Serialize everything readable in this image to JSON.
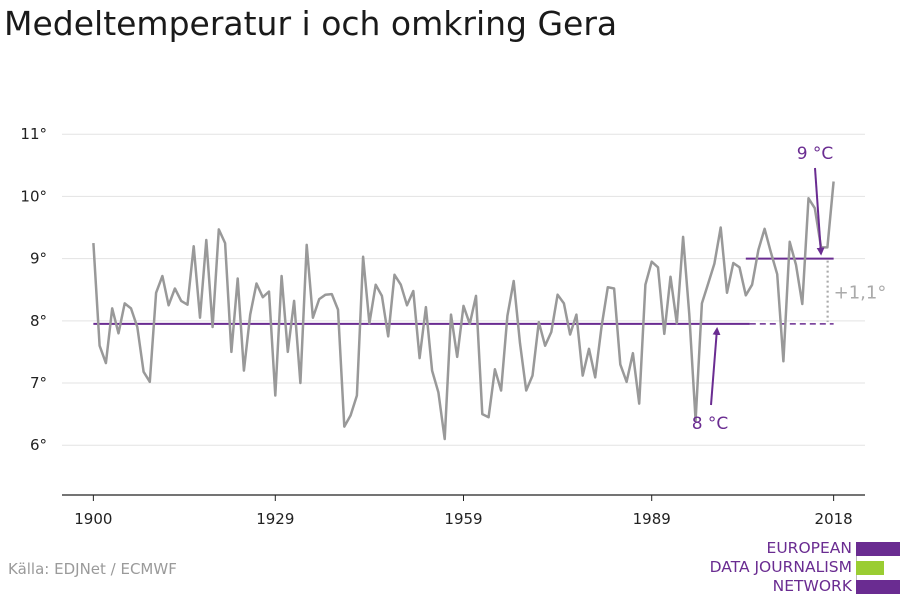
{
  "title": "Medeltemperatur i och omkring Gera",
  "source": "Källa: EDJNet / ECMWF",
  "logo": {
    "lines": [
      "EUROPEAN",
      "DATA JOURNALISM",
      "NETWORK"
    ],
    "colors": {
      "purple": "#6a2c91",
      "green": "#9acd32"
    }
  },
  "chart_data": {
    "type": "line",
    "x_ticks": [
      1900,
      1929,
      1959,
      1989,
      2018
    ],
    "y_ticks": [
      6,
      7,
      8,
      9,
      10,
      11
    ],
    "y_tick_labels": [
      "6°",
      "7°",
      "8°",
      "9°",
      "10°",
      "11°"
    ],
    "xlim": [
      1895,
      2023
    ],
    "ylim": [
      5.2,
      11.55
    ],
    "series": [
      {
        "color": "#999999",
        "x": [
          1900,
          1901,
          1902,
          1903,
          1904,
          1905,
          1906,
          1907,
          1908,
          1909,
          1910,
          1911,
          1912,
          1913,
          1914,
          1915,
          1916,
          1917,
          1918,
          1919,
          1920,
          1921,
          1922,
          1923,
          1924,
          1925,
          1926,
          1927,
          1928,
          1929,
          1930,
          1931,
          1932,
          1933,
          1934,
          1935,
          1936,
          1937,
          1938,
          1939,
          1940,
          1941,
          1942,
          1943,
          1944,
          1945,
          1946,
          1947,
          1948,
          1949,
          1950,
          1951,
          1952,
          1953,
          1954,
          1955,
          1956,
          1957,
          1958,
          1959,
          1960,
          1961,
          1962,
          1963,
          1964,
          1965,
          1966,
          1967,
          1968,
          1969,
          1970,
          1971,
          1972,
          1973,
          1974,
          1975,
          1976,
          1977,
          1978,
          1979,
          1980,
          1981,
          1982,
          1983,
          1984,
          1985,
          1986,
          1987,
          1988,
          1989,
          1990,
          1991,
          1992,
          1993,
          1994,
          1995,
          1996,
          1997,
          1998,
          1999,
          2000,
          2001,
          2002,
          2003,
          2004,
          2005,
          2006,
          2007,
          2008,
          2009,
          2010,
          2011,
          2012,
          2013,
          2014,
          2015,
          2016,
          2017,
          2018
        ],
        "values": [
          9.25,
          7.6,
          7.32,
          8.2,
          7.8,
          8.28,
          8.2,
          7.9,
          7.18,
          7.02,
          8.45,
          8.72,
          8.25,
          8.52,
          8.32,
          8.26,
          9.2,
          8.05,
          9.3,
          7.9,
          9.47,
          9.25,
          7.5,
          8.68,
          7.2,
          8.1,
          8.6,
          8.38,
          8.47,
          6.8,
          8.72,
          7.5,
          8.32,
          7.0,
          9.22,
          8.05,
          8.35,
          8.42,
          8.43,
          8.18,
          6.3,
          6.48,
          6.8,
          9.03,
          7.96,
          8.58,
          8.4,
          7.75,
          8.74,
          8.58,
          8.25,
          8.48,
          7.4,
          8.22,
          7.2,
          6.85,
          6.1,
          8.1,
          7.42,
          8.24,
          7.95,
          8.4,
          6.5,
          6.45,
          7.22,
          6.88,
          8.08,
          8.64,
          7.64,
          6.88,
          7.12,
          7.98,
          7.6,
          7.82,
          8.42,
          8.28,
          7.78,
          8.1,
          7.12,
          7.55,
          7.09,
          7.9,
          8.54,
          8.52,
          7.3,
          7.02,
          7.48,
          6.67,
          8.58,
          8.95,
          8.86,
          7.79,
          8.71,
          7.96,
          9.35,
          8.1,
          6.4,
          8.28,
          8.6,
          8.92,
          9.5,
          8.45,
          8.93,
          8.86,
          8.41,
          8.58,
          9.14,
          9.48,
          9.1,
          8.75,
          7.35,
          9.27,
          8.9,
          8.27,
          9.97,
          9.81,
          9.18,
          9.18,
          10.24
        ]
      }
    ],
    "reference_lines": [
      {
        "label": "8 °C",
        "value": 7.95,
        "x_from": 1900,
        "x_to": 2018,
        "dashed_from": 2004,
        "color": "#6a2c91"
      },
      {
        "label": "9 °C",
        "value": 9.0,
        "x_from": 2004,
        "x_to": 2018,
        "color": "#6a2c91"
      }
    ],
    "difference_label": "+1,1°",
    "difference_color": "#aaaaaa",
    "grid": true
  }
}
